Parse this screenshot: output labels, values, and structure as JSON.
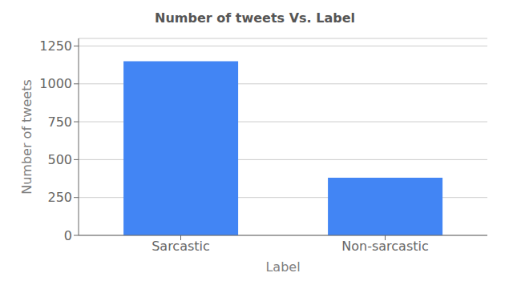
{
  "chart_data": {
    "type": "bar",
    "title": "Number of tweets Vs. Label",
    "xlabel": "Label",
    "ylabel": "Number of tweets",
    "categories": [
      "Sarcastic",
      "Non-sarcastic"
    ],
    "values": [
      1150,
      380
    ],
    "color": "#4285F4",
    "ylim": [
      0,
      1300
    ],
    "yticks": [
      0,
      250,
      500,
      750,
      1000,
      1250
    ],
    "grid": true
  }
}
